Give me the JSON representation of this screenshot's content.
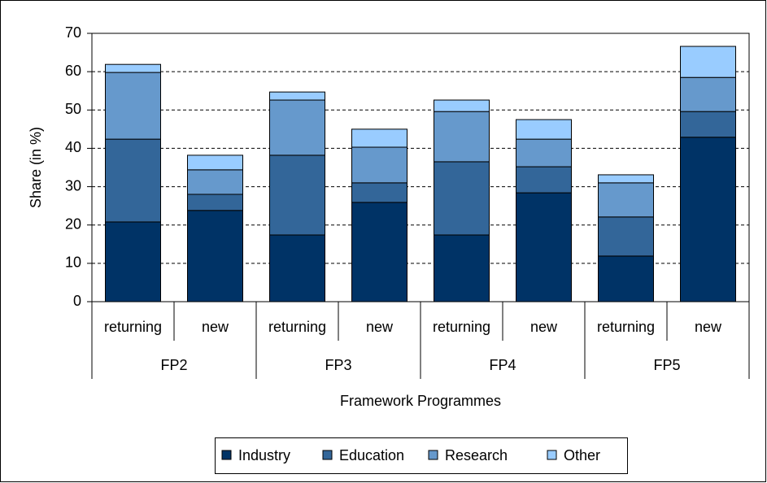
{
  "chart_data": {
    "type": "stacked_bar",
    "x_label": "Framework Programmes",
    "y_label": "Share (in %)",
    "categories": [
      "returning",
      "new",
      "returning",
      "new",
      "returning",
      "new",
      "returning",
      "new"
    ],
    "groups": [
      "FP2",
      "FP3",
      "FP4",
      "FP5"
    ],
    "series": [
      {
        "name": "Industry",
        "color": "#003366",
        "values": [
          20.8,
          23.8,
          17.4,
          25.9,
          17.4,
          28.4,
          11.9,
          42.9
        ]
      },
      {
        "name": "Education",
        "color": "#336699",
        "values": [
          21.6,
          4.2,
          20.8,
          5.1,
          19.1,
          6.8,
          10.2,
          6.7
        ]
      },
      {
        "name": "Research",
        "color": "#6699cc",
        "values": [
          17.4,
          6.4,
          14.4,
          9.3,
          13.1,
          7.2,
          8.9,
          8.9
        ]
      },
      {
        "name": "Other",
        "color": "#99ccff",
        "values": [
          2.1,
          3.8,
          2.1,
          4.7,
          3.0,
          5.1,
          2.1,
          8.1
        ]
      }
    ],
    "ylim": [
      0,
      70
    ],
    "yticks": [
      0,
      10,
      20,
      30,
      40,
      50,
      60,
      70
    ],
    "grid": true,
    "legend": "bottom"
  }
}
